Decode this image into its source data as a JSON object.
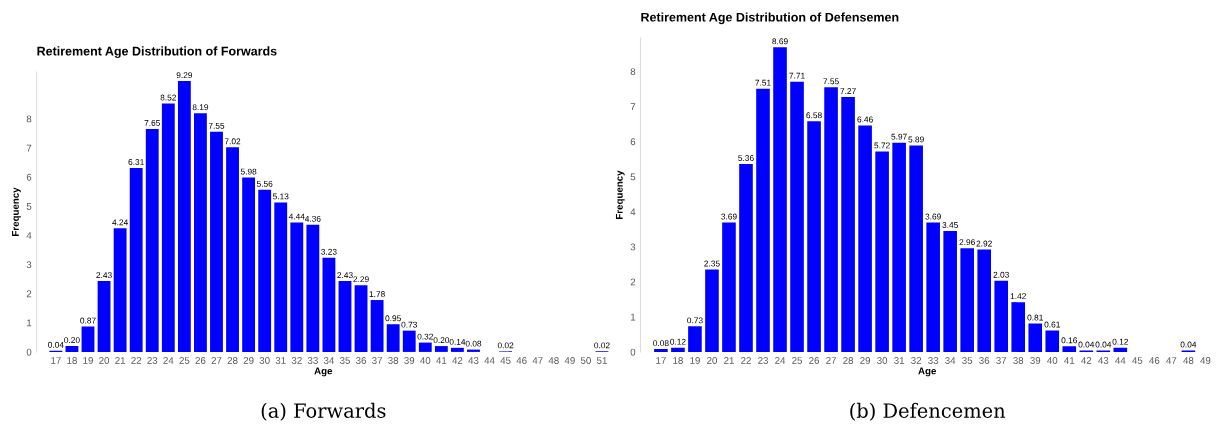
{
  "chart_data": [
    {
      "type": "bar",
      "title": "Retirement Age Distribution of Forwards",
      "xlabel": "Age",
      "ylabel": "Frequency",
      "color": "#0000ff",
      "categories": [
        "17",
        "18",
        "19",
        "20",
        "21",
        "22",
        "23",
        "24",
        "25",
        "26",
        "27",
        "28",
        "29",
        "30",
        "31",
        "32",
        "33",
        "34",
        "35",
        "36",
        "37",
        "38",
        "39",
        "40",
        "41",
        "42",
        "43",
        "44",
        "45",
        "46",
        "47",
        "48",
        "49",
        "50",
        "51"
      ],
      "values": [
        0.04,
        0.2,
        0.87,
        2.43,
        4.24,
        6.31,
        7.65,
        8.52,
        9.29,
        8.19,
        7.55,
        7.02,
        5.98,
        5.56,
        5.13,
        4.44,
        4.36,
        3.23,
        2.43,
        2.29,
        1.78,
        0.95,
        0.73,
        0.32,
        0.2,
        0.14,
        0.08,
        null,
        0.02,
        null,
        null,
        null,
        null,
        null,
        0.02
      ],
      "value_labels": [
        "0.04",
        "0.20",
        "0.87",
        "2.43",
        "4.24",
        "6.31",
        "7.65",
        "8.52",
        "9.29",
        "8.19",
        "7.55",
        "7.02",
        "5.98",
        "5.56",
        "5.13",
        "4.44",
        "4.36",
        "3.23",
        "2.43",
        "2.29",
        "1.78",
        "0.95",
        "0.73",
        "0.32",
        "0.20",
        "0.14",
        "0.08",
        null,
        "0.02",
        null,
        null,
        null,
        null,
        null,
        "0.02"
      ],
      "ylim": [
        0,
        9.6
      ],
      "yticks": [
        0,
        1,
        2,
        3,
        4,
        5,
        6,
        7,
        8
      ],
      "grid": false,
      "annotations": [
        "(a) Forwards"
      ]
    },
    {
      "type": "bar",
      "title": "Retirement Age Distribution of Defensemen",
      "xlabel": "Age",
      "ylabel": "Frequency",
      "color": "#0000ff",
      "categories": [
        "17",
        "18",
        "19",
        "20",
        "21",
        "22",
        "23",
        "24",
        "25",
        "26",
        "27",
        "28",
        "29",
        "30",
        "31",
        "32",
        "33",
        "34",
        "35",
        "36",
        "37",
        "38",
        "39",
        "40",
        "41",
        "42",
        "43",
        "44",
        "45",
        "46",
        "47",
        "48",
        "49"
      ],
      "values": [
        0.08,
        0.12,
        0.73,
        2.35,
        3.69,
        5.36,
        7.51,
        8.69,
        7.71,
        6.58,
        7.55,
        7.27,
        6.46,
        5.72,
        5.97,
        5.89,
        3.69,
        3.45,
        2.96,
        2.92,
        2.03,
        1.42,
        0.81,
        0.61,
        0.16,
        0.04,
        0.04,
        0.12,
        null,
        null,
        null,
        0.04,
        null
      ],
      "value_labels": [
        "0.08",
        "0.12",
        "0.73",
        "2.35",
        "3.69",
        "5.36",
        "7.51",
        "8.69",
        "7.71",
        "6.58",
        "7.55",
        "7.27",
        "6.46",
        "5.72",
        "5.97",
        "5.89",
        "3.69",
        "3.45",
        "2.96",
        "2.92",
        "2.03",
        "1.42",
        "0.81",
        "0.61",
        "0.16",
        "0.04",
        "0.04",
        "0.12",
        null,
        null,
        null,
        "0.04",
        null
      ],
      "ylim": [
        0,
        8.95
      ],
      "yticks": [
        0,
        1,
        2,
        3,
        4,
        5,
        6,
        7,
        8
      ],
      "grid": false,
      "annotations": [
        "(b) Defencemen"
      ]
    }
  ]
}
